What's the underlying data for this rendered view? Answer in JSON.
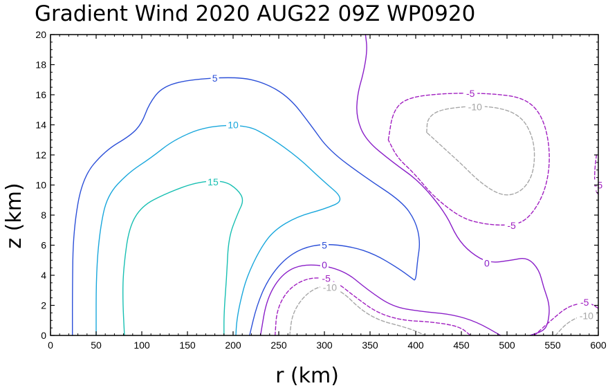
{
  "chart_data": {
    "type": "contour",
    "title": "Gradient Wind 2020 AUG22 09Z   WP0920",
    "xlabel": "r (km)",
    "ylabel": "z (km)",
    "xlim": [
      0,
      600
    ],
    "ylim": [
      0,
      20
    ],
    "xticks": [
      0,
      50,
      100,
      150,
      200,
      250,
      300,
      350,
      400,
      450,
      500,
      550,
      600
    ],
    "yticks": [
      0,
      2,
      4,
      6,
      8,
      10,
      12,
      14,
      16,
      18,
      20
    ],
    "grid": false,
    "colors": {
      "5": "#2b4fd8",
      "10": "#19a7dc",
      "15": "#17bfb2",
      "0": "#8a1ec8",
      "-5": "#a01ec0",
      "-10": "#a6a6a6"
    },
    "contours": [
      {
        "level": 5,
        "label": "5",
        "dashed": false,
        "labels_at": [
          [
            180,
            17.1
          ],
          [
            300,
            6.0
          ]
        ],
        "points": [
          [
            24,
            0
          ],
          [
            24,
            3
          ],
          [
            25,
            7
          ],
          [
            35,
            10.5
          ],
          [
            60,
            12.3
          ],
          [
            88,
            13.3
          ],
          [
            100,
            14.1
          ],
          [
            108,
            15.4
          ],
          [
            122,
            16.5
          ],
          [
            150,
            17.0
          ],
          [
            205,
            17.2
          ],
          [
            235,
            16.8
          ],
          [
            262,
            15.8
          ],
          [
            285,
            14.0
          ],
          [
            305,
            12.3
          ],
          [
            345,
            10.5
          ],
          [
            385,
            8.9
          ],
          [
            400,
            7.6
          ],
          [
            405,
            6.2
          ],
          [
            402,
            5.0
          ],
          [
            400,
            3.6
          ],
          [
            396,
            3.8
          ],
          [
            380,
            4.5
          ],
          [
            355,
            5.4
          ],
          [
            330,
            5.9
          ],
          [
            300,
            6.1
          ],
          [
            275,
            5.8
          ],
          [
            255,
            5.0
          ],
          [
            238,
            3.7
          ],
          [
            226,
            2.0
          ],
          [
            218,
            0
          ]
        ]
      },
      {
        "level": 10,
        "label": "10",
        "dashed": false,
        "labels_at": [
          [
            200,
            14.0
          ]
        ],
        "points": [
          [
            50,
            0
          ],
          [
            50,
            4
          ],
          [
            54,
            7
          ],
          [
            62,
            9.3
          ],
          [
            85,
            10.8
          ],
          [
            110,
            11.8
          ],
          [
            135,
            13.0
          ],
          [
            170,
            13.9
          ],
          [
            215,
            14.0
          ],
          [
            240,
            13.2
          ],
          [
            272,
            11.8
          ],
          [
            298,
            10.3
          ],
          [
            323,
            9.0
          ],
          [
            300,
            8.4
          ],
          [
            270,
            7.9
          ],
          [
            245,
            7.0
          ],
          [
            230,
            5.8
          ],
          [
            215,
            3.9
          ],
          [
            208,
            2.3
          ],
          [
            204,
            1.0
          ],
          [
            203,
            0
          ]
        ]
      },
      {
        "level": 15,
        "label": "15",
        "dashed": false,
        "labels_at": [
          [
            178,
            10.2
          ]
        ],
        "points": [
          [
            81,
            0
          ],
          [
            79,
            2.5
          ],
          [
            80,
            4.5
          ],
          [
            86,
            7.2
          ],
          [
            100,
            8.6
          ],
          [
            125,
            9.4
          ],
          [
            160,
            10.2
          ],
          [
            190,
            10.3
          ],
          [
            205,
            9.7
          ],
          [
            212,
            9.0
          ],
          [
            205,
            8.1
          ],
          [
            195,
            6.5
          ],
          [
            193,
            4.0
          ],
          [
            190,
            1.5
          ],
          [
            190,
            0
          ]
        ]
      },
      {
        "level": 0,
        "label": "0",
        "dashed": false,
        "labels_at": [
          [
            300,
            4.7
          ],
          [
            478,
            4.8
          ]
        ],
        "points": [
          [
            230,
            0
          ],
          [
            237,
            2.5
          ],
          [
            255,
            4.2
          ],
          [
            280,
            4.8
          ],
          [
            320,
            4.4
          ],
          [
            348,
            3.0
          ],
          [
            375,
            1.9
          ],
          [
            405,
            1.6
          ],
          [
            440,
            1.4
          ],
          [
            467,
            0.9
          ],
          [
            493,
            0
          ]
        ]
      },
      {
        "level": 0,
        "label": "0",
        "dashed": false,
        "labels_at": [],
        "points": [
          [
            345,
            20
          ],
          [
            347,
            19.0
          ],
          [
            343,
            17.5
          ],
          [
            336,
            16.0
          ],
          [
            335,
            14.5
          ],
          [
            345,
            13.0
          ],
          [
            375,
            11.5
          ],
          [
            405,
            10.2
          ],
          [
            433,
            8.1
          ],
          [
            445,
            6.5
          ],
          [
            460,
            5.5
          ],
          [
            480,
            4.8
          ],
          [
            505,
            5.0
          ],
          [
            522,
            5.2
          ],
          [
            535,
            4.4
          ],
          [
            540,
            3.2
          ],
          [
            547,
            2.0
          ],
          [
            545,
            0.8
          ],
          [
            540,
            0.3
          ],
          [
            525,
            0
          ]
        ]
      },
      {
        "level": -5,
        "label": "-5",
        "dashed": true,
        "labels_at": [
          [
            302,
            3.8
          ]
        ],
        "points": [
          [
            246,
            0
          ],
          [
            248,
            1.8
          ],
          [
            262,
            3.2
          ],
          [
            285,
            3.9
          ],
          [
            310,
            3.7
          ],
          [
            335,
            2.5
          ],
          [
            358,
            1.5
          ],
          [
            385,
            1.0
          ],
          [
            418,
            0.9
          ],
          [
            448,
            0.6
          ],
          [
            460,
            0
          ]
        ]
      },
      {
        "level": -5,
        "label": "-5",
        "dashed": true,
        "labels_at": [
          [
            460,
            16.1
          ],
          [
            505,
            7.3
          ]
        ],
        "points": [
          [
            370,
            13.0
          ],
          [
            375,
            14.9
          ],
          [
            390,
            15.8
          ],
          [
            430,
            16.1
          ],
          [
            480,
            16.1
          ],
          [
            520,
            15.8
          ],
          [
            540,
            14.5
          ],
          [
            548,
            12.0
          ],
          [
            542,
            9.5
          ],
          [
            522,
            7.6
          ],
          [
            500,
            7.3
          ],
          [
            475,
            7.4
          ],
          [
            450,
            7.8
          ],
          [
            420,
            9.2
          ],
          [
            398,
            10.8
          ],
          [
            380,
            11.8
          ],
          [
            370,
            13.0
          ]
        ]
      },
      {
        "level": -5,
        "label": "-5",
        "dashed": true,
        "labels_at": [
          [
            600,
            10.0
          ]
        ],
        "points": [
          [
            598,
            12.0
          ],
          [
            596,
            11.0
          ],
          [
            596,
            10.0
          ],
          [
            598,
            9.5
          ],
          [
            600,
            9.4
          ]
        ]
      },
      {
        "level": -5,
        "label": "-5",
        "dashed": true,
        "labels_at": [
          [
            585,
            2.2
          ]
        ],
        "points": [
          [
            530,
            0
          ],
          [
            548,
            1.0
          ],
          [
            568,
            2.0
          ],
          [
            590,
            2.2
          ],
          [
            600,
            1.8
          ]
        ]
      },
      {
        "level": -10,
        "label": "-10",
        "dashed": true,
        "labels_at": [
          [
            306,
            3.2
          ]
        ],
        "points": [
          [
            262,
            0
          ],
          [
            265,
            1.5
          ],
          [
            280,
            2.8
          ],
          [
            300,
            3.4
          ],
          [
            320,
            2.9
          ],
          [
            340,
            1.7
          ],
          [
            360,
            1.0
          ],
          [
            385,
            0.6
          ],
          [
            400,
            0.3
          ],
          [
            410,
            0
          ]
        ]
      },
      {
        "level": -10,
        "label": "-10",
        "dashed": true,
        "labels_at": [
          [
            465,
            15.2
          ]
        ],
        "points": [
          [
            412,
            13.5
          ],
          [
            413,
            14.5
          ],
          [
            430,
            15.1
          ],
          [
            480,
            15.3
          ],
          [
            515,
            14.7
          ],
          [
            530,
            13.0
          ],
          [
            530,
            11.0
          ],
          [
            520,
            9.8
          ],
          [
            505,
            9.3
          ],
          [
            490,
            9.4
          ],
          [
            470,
            10.2
          ],
          [
            450,
            11.4
          ],
          [
            430,
            12.5
          ],
          [
            412,
            13.5
          ]
        ]
      },
      {
        "level": -10,
        "label": "-10",
        "dashed": true,
        "labels_at": [
          [
            587,
            1.3
          ]
        ],
        "points": [
          [
            553,
            0
          ],
          [
            565,
            0.8
          ],
          [
            580,
            1.3
          ],
          [
            600,
            1.4
          ]
        ]
      }
    ]
  }
}
